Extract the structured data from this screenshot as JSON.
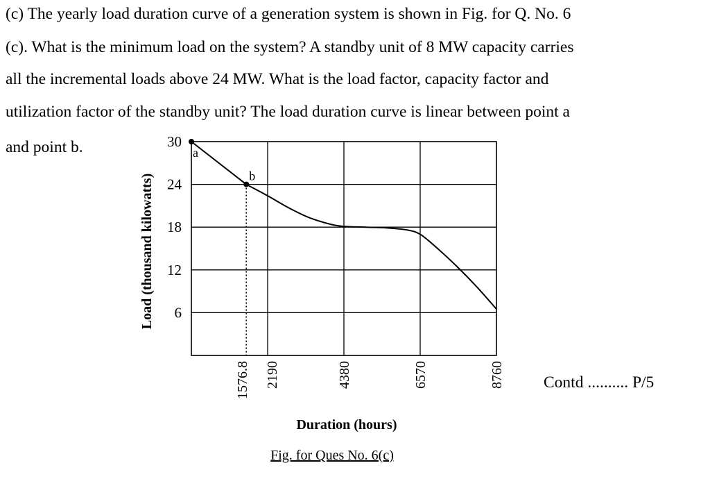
{
  "question": {
    "line1": "(c) The yearly load duration curve of a generation system is shown in Fig. for Q. No. 6",
    "line2": "(c). What  is the minimum load on the system? A standby unit of 8 MW capacity carries",
    "line3": "all the incremental loads above 24 MW. What is the load factor, capacity factor and",
    "line4": "utilization factor of the standby unit? The load duration curve is linear between point a",
    "line5": "and point b."
  },
  "contd": "Contd .......... P/5",
  "chart_data": {
    "type": "line",
    "xlabel": "Duration (hours)",
    "ylabel": "Load (thousand kilowatts)",
    "caption": "Fig. for Ques No. 6(c)",
    "x_ticks": [
      "1576.8",
      "2190",
      "4380",
      "6570",
      "8760"
    ],
    "y_ticks": [
      "30",
      "24",
      "18",
      "12",
      "6"
    ],
    "xlim": [
      0,
      8760
    ],
    "ylim": [
      0,
      30
    ],
    "grid": true,
    "points": [
      {
        "x": 0,
        "y": 30,
        "label": "a"
      },
      {
        "x": 1576.8,
        "y": 24,
        "label": "b"
      }
    ],
    "series": [
      {
        "x": [
          0,
          1576.8,
          2190,
          2800,
          3400,
          4000,
          4380,
          5000,
          5600,
          6200,
          6570,
          7000,
          7600,
          8200,
          8760
        ],
        "y": [
          30,
          24,
          22.4,
          20.7,
          19.3,
          18.4,
          18.1,
          18.0,
          17.9,
          17.6,
          17.0,
          15.3,
          12.6,
          9.6,
          6.5
        ]
      }
    ]
  }
}
